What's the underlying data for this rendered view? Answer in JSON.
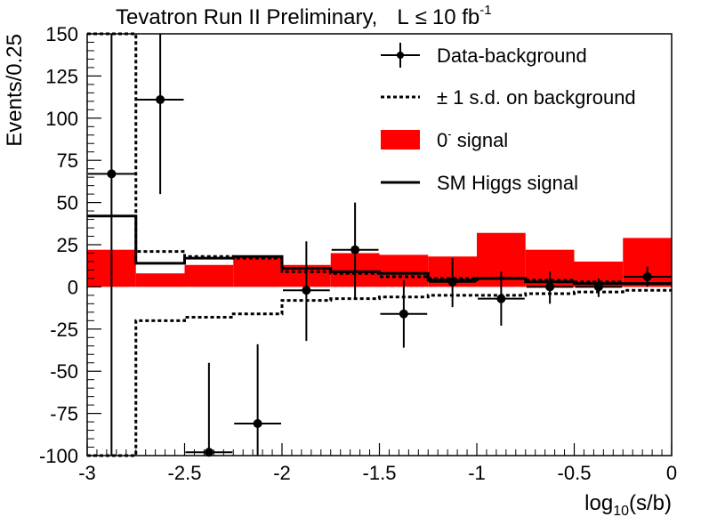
{
  "chart_data": {
    "type": "histogram",
    "title": "Tevatron Run II Preliminary,",
    "title_lumi_prefix": "L",
    "title_lumi_leq": "≤",
    "title_lumi_value": "10 fb",
    "title_lumi_exp": "-1",
    "ylabel": "Events/0.25",
    "xlabel_main": "log",
    "xlabel_sub": "10",
    "xlabel_rest": "(s/b)",
    "xlim": [
      -3,
      0
    ],
    "ylim": [
      -100,
      150
    ],
    "x_ticks": [
      -3,
      -2.5,
      -2,
      -1.5,
      -1,
      -0.5,
      0
    ],
    "x_tick_labels": [
      "-3",
      "-2.5",
      "-2",
      "-1.5",
      "-1",
      "-0.5",
      "0"
    ],
    "y_ticks": [
      -100,
      -75,
      -50,
      -25,
      0,
      25,
      50,
      75,
      100,
      125,
      150
    ],
    "y_tick_labels": [
      "-100",
      "-75",
      "-50",
      "-25",
      "0",
      "25",
      "50",
      "75",
      "100",
      "125",
      "150"
    ],
    "bin_edges": [
      -3,
      -2.75,
      -2.5,
      -2.25,
      -2,
      -1.75,
      -1.5,
      -1.25,
      -1,
      -0.75,
      -0.5,
      -0.25,
      0
    ],
    "colors": {
      "signal_fill": "#ff0000",
      "lines": "#000000"
    },
    "legend": {
      "position": "top-right",
      "entries": [
        {
          "key": "data",
          "label": "Data-background"
        },
        {
          "key": "bkg_sd",
          "label": "± 1 s.d. on background"
        },
        {
          "key": "signal",
          "label_main": "0",
          "label_sup": "-",
          "label_rest": " signal"
        },
        {
          "key": "sm_higgs",
          "label": "SM Higgs signal"
        }
      ]
    },
    "series": {
      "signal_0minus": [
        22,
        8,
        13,
        18,
        13,
        20,
        19,
        18,
        32,
        22,
        15,
        29
      ],
      "sm_higgs": [
        42,
        14,
        17,
        18,
        11,
        9,
        8,
        4,
        5,
        3,
        2,
        2
      ],
      "bkg_plus_1sd": [
        150,
        21,
        18,
        17,
        9,
        8,
        6,
        5,
        5,
        4,
        3,
        2
      ],
      "bkg_minus_1sd": [
        -100,
        -20,
        -18,
        -16,
        -8,
        -7,
        -6,
        -5,
        -5,
        -4,
        -3,
        -2
      ],
      "data_points": [
        {
          "x": -2.875,
          "y": 67,
          "yerr_low": -100,
          "yerr_high": 150
        },
        {
          "x": -2.625,
          "y": 111,
          "yerr_low": 55,
          "yerr_high": 150
        },
        {
          "x": -2.375,
          "y": -98,
          "yerr_low": -100,
          "yerr_high": -45
        },
        {
          "x": -2.125,
          "y": -81,
          "yerr_low": -100,
          "yerr_high": -34
        },
        {
          "x": -1.875,
          "y": -2,
          "yerr_low": -32,
          "yerr_high": 27
        },
        {
          "x": -1.625,
          "y": 22,
          "yerr_low": -7,
          "yerr_high": 50
        },
        {
          "x": -1.375,
          "y": -16,
          "yerr_low": -36,
          "yerr_high": 4
        },
        {
          "x": -1.125,
          "y": 3,
          "yerr_low": -12,
          "yerr_high": 17
        },
        {
          "x": -0.875,
          "y": -7,
          "yerr_low": -23,
          "yerr_high": 9
        },
        {
          "x": -0.625,
          "y": 0,
          "yerr_low": -10,
          "yerr_high": 9
        },
        {
          "x": -0.375,
          "y": 0,
          "yerr_low": -6,
          "yerr_high": 5
        },
        {
          "x": -0.125,
          "y": 6,
          "yerr_low": 0,
          "yerr_high": 12
        }
      ]
    }
  }
}
